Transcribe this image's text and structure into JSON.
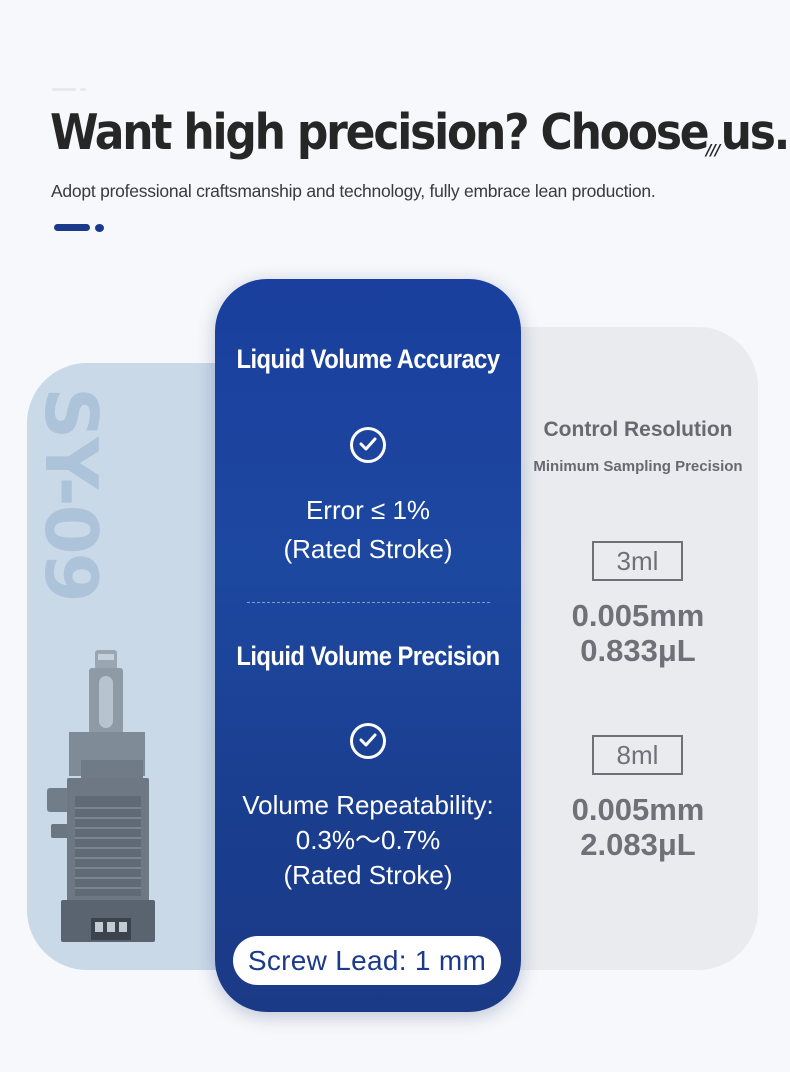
{
  "header": {
    "title": "Want high precision? Choose us.",
    "decoration": "///",
    "subtitle": "Adopt professional craftsmanship and technology, fully embrace lean production."
  },
  "product": {
    "model_watermark": "SY-09"
  },
  "accuracy": {
    "title": "Liquid Volume Accuracy",
    "icon": "check-circle-icon",
    "line1": "Error ≤ 1%",
    "line2": "(Rated Stroke)"
  },
  "precision": {
    "title": "Liquid Volume Precision",
    "icon": "check-circle-icon",
    "line1": "Volume Repeatability:",
    "line2": "0.3%〜0.7%",
    "line3": "(Rated Stroke)"
  },
  "screw_lead": "Screw Lead: 1 mm",
  "resolution": {
    "title": "Control Resolution",
    "subtitle": "Minimum Sampling Precision",
    "items": [
      {
        "volume": "3ml",
        "distance": "0.005mm",
        "sample": "0.833μL"
      },
      {
        "volume": "8ml",
        "distance": "0.005mm",
        "sample": "2.083μL"
      }
    ]
  },
  "colors": {
    "brand_blue": "#1c3a8c",
    "card_gradient_top": "#1a3f9e",
    "left_panel": "#c9d9e8",
    "right_panel": "#e9ebef"
  }
}
